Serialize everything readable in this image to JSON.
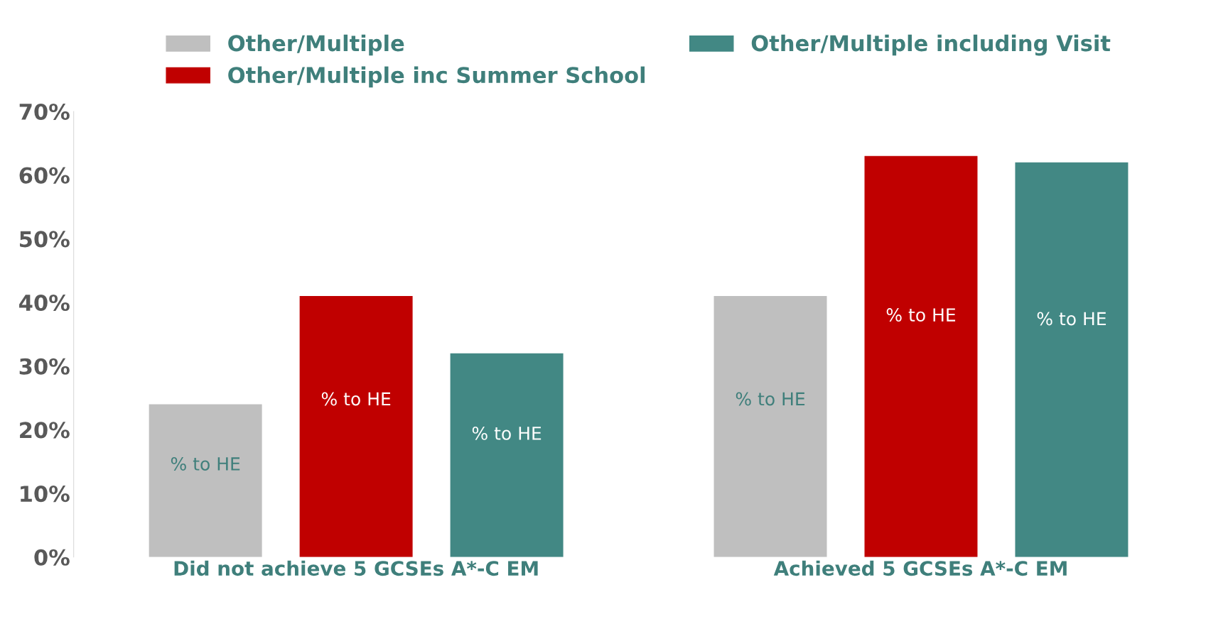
{
  "chart_data": {
    "type": "bar",
    "categories": [
      "Did not achieve 5 GCSEs A*-C EM",
      "Achieved 5 GCSEs A*-C EM"
    ],
    "series": [
      {
        "name": "Other/Multiple",
        "color": "#bfbfbf",
        "values": [
          24,
          41
        ],
        "value_labels": [
          "% to HE",
          "% to HE"
        ]
      },
      {
        "name": "Other/Multiple inc Summer School",
        "color": "#c00000",
        "values": [
          41,
          63
        ],
        "value_labels": [
          "% to HE",
          "% to HE"
        ]
      },
      {
        "name": "Other/Multiple including Visit",
        "color": "#428884",
        "values": [
          32,
          62
        ],
        "value_labels": [
          "% to HE",
          "% to HE"
        ]
      }
    ],
    "ylim": [
      0,
      70
    ],
    "yticks": [
      {
        "value": 0,
        "label": "0%"
      },
      {
        "value": 10,
        "label": "10%"
      },
      {
        "value": 20,
        "label": "20%"
      },
      {
        "value": 30,
        "label": "30%"
      },
      {
        "value": 40,
        "label": "40%"
      },
      {
        "value": 50,
        "label": "50%"
      },
      {
        "value": 60,
        "label": "60%"
      },
      {
        "value": 70,
        "label": "70%"
      }
    ],
    "grid": false,
    "legend": "top"
  }
}
